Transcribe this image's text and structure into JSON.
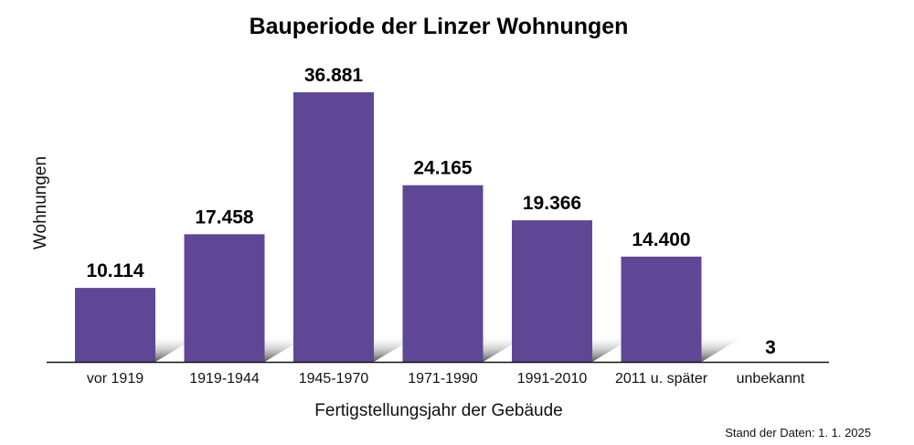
{
  "chart_data": {
    "type": "bar",
    "title": "Bauperiode der Linzer Wohnungen",
    "xlabel": "Fertigstellungsjahr der Gebäude",
    "ylabel": "Wohnungen",
    "categories": [
      "vor 1919",
      "1919-1944",
      "1945-1970",
      "1971-1990",
      "1991-2010",
      "2011 u. später",
      "unbekannt"
    ],
    "values": [
      10114,
      17458,
      36881,
      24165,
      19366,
      14400,
      3
    ],
    "value_labels": [
      "10.114",
      "17.458",
      "36.881",
      "24.165",
      "19.366",
      "14.400",
      "3"
    ],
    "ylim": [
      0,
      36881
    ],
    "grid": false,
    "bar_color": "#5f4796",
    "note": "Stand der Daten: 1. 1. 2025"
  }
}
